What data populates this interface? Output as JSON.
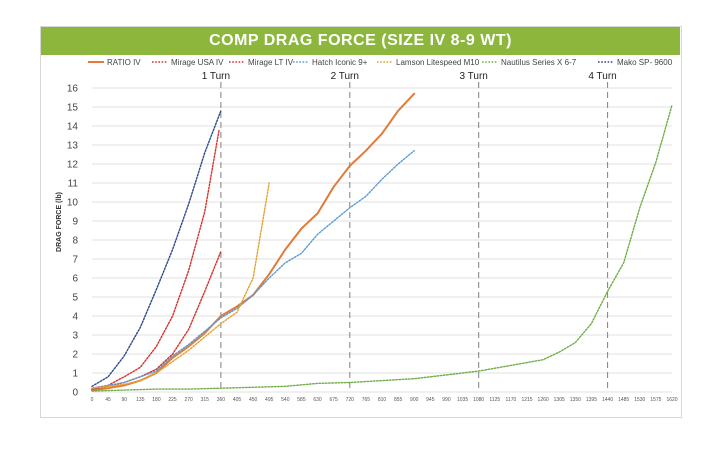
{
  "chart_data": {
    "type": "line",
    "title": "COMP DRAG FORCE (SIZE IV 8-9 WT)",
    "ylabel": "DRAG FORCE (lb)",
    "xlabel": "",
    "ylim": [
      0,
      16
    ],
    "xlim": [
      0,
      1620
    ],
    "grid": "horizontal",
    "legend_position": "top",
    "yticks": [
      0,
      1,
      2,
      3,
      4,
      5,
      6,
      7,
      8,
      9,
      10,
      11,
      12,
      13,
      14,
      15,
      16
    ],
    "xticks": [
      0,
      45,
      90,
      135,
      180,
      225,
      270,
      315,
      360,
      405,
      450,
      495,
      540,
      585,
      630,
      675,
      720,
      765,
      810,
      855,
      900,
      945,
      990,
      1035,
      1080,
      1125,
      1170,
      1215,
      1260,
      1305,
      1350,
      1395,
      1440,
      1485,
      1530,
      1575,
      1620
    ],
    "turn_markers": [
      {
        "label": "1 Turn",
        "x": 360
      },
      {
        "label": "2 Turn",
        "x": 720
      },
      {
        "label": "3 Turn",
        "x": 1080
      },
      {
        "label": "4 Turn",
        "x": 1440
      }
    ],
    "series": [
      {
        "name": "RATIO IV",
        "color": "#e07b39",
        "dash": "solid",
        "x": [
          0,
          45,
          90,
          135,
          180,
          225,
          270,
          315,
          360,
          405,
          450,
          495,
          540,
          585,
          630,
          675,
          720,
          765,
          810,
          855,
          900
        ],
        "y": [
          0.1,
          0.2,
          0.35,
          0.6,
          1.0,
          1.8,
          2.4,
          3.1,
          4.0,
          4.5,
          5.1,
          6.2,
          7.5,
          8.6,
          9.4,
          10.8,
          11.9,
          12.7,
          13.6,
          14.8,
          15.7
        ]
      },
      {
        "name": "Mirage USA IV",
        "color": "#d9302c",
        "dash": "dotted",
        "x": [
          0,
          45,
          90,
          135,
          180,
          225,
          270,
          315,
          355
        ],
        "y": [
          0.2,
          0.35,
          0.8,
          1.3,
          2.4,
          4.0,
          6.4,
          9.5,
          13.8
        ]
      },
      {
        "name": "Mirage LT IV",
        "color": "#d9302c",
        "dash": "dotted",
        "x": [
          0,
          45,
          90,
          135,
          180,
          225,
          270,
          315,
          360
        ],
        "y": [
          0.15,
          0.3,
          0.5,
          0.8,
          1.2,
          2.0,
          3.3,
          5.3,
          7.4
        ]
      },
      {
        "name": "Hatch Iconic 9+",
        "color": "#5b9bd5",
        "dash": "dotted",
        "x": [
          0,
          45,
          90,
          135,
          180,
          225,
          270,
          315,
          360,
          405,
          450,
          495,
          540,
          585,
          630,
          675,
          720,
          765,
          810,
          855,
          900
        ],
        "y": [
          0.2,
          0.35,
          0.5,
          0.8,
          1.1,
          1.9,
          2.5,
          3.2,
          3.9,
          4.4,
          5.1,
          6.0,
          6.8,
          7.3,
          8.3,
          9.0,
          9.7,
          10.3,
          11.2,
          12.0,
          12.7
        ]
      },
      {
        "name": "Lamson Litespeed M10",
        "color": "#e5a12b",
        "dash": "dotted",
        "x": [
          0,
          45,
          90,
          135,
          180,
          225,
          270,
          315,
          360,
          405,
          450,
          495
        ],
        "y": [
          0.2,
          0.3,
          0.4,
          0.6,
          1.0,
          1.6,
          2.2,
          2.9,
          3.6,
          4.2,
          6.0,
          11.0
        ]
      },
      {
        "name": "Nautilus Series X 6-7",
        "color": "#70ad47",
        "dash": "dotted",
        "x": [
          0,
          90,
          180,
          270,
          360,
          450,
          540,
          630,
          720,
          810,
          900,
          990,
          1080,
          1170,
          1260,
          1305,
          1350,
          1395,
          1440,
          1485,
          1530,
          1575,
          1620
        ],
        "y": [
          0.05,
          0.1,
          0.15,
          0.15,
          0.2,
          0.25,
          0.3,
          0.45,
          0.5,
          0.6,
          0.7,
          0.9,
          1.1,
          1.4,
          1.7,
          2.1,
          2.6,
          3.6,
          5.3,
          6.8,
          9.7,
          12.1,
          15.1
        ]
      },
      {
        "name": "Mako SP- 9600",
        "color": "#2e4a8c",
        "dash": "dotted",
        "x": [
          0,
          45,
          90,
          135,
          180,
          225,
          270,
          315,
          360
        ],
        "y": [
          0.3,
          0.8,
          1.9,
          3.4,
          5.4,
          7.5,
          9.9,
          12.6,
          14.8
        ]
      }
    ]
  }
}
